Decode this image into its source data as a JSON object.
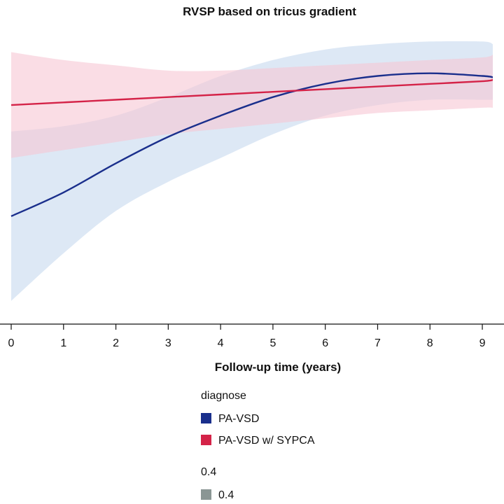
{
  "chart_data": {
    "type": "line",
    "title": "RVSP based on tricus gradient",
    "xlabel": "Follow-up time (years)",
    "ylabel": "",
    "x_ticks": [
      0,
      1,
      2,
      3,
      4,
      5,
      6,
      7,
      8,
      9
    ],
    "xlim": [
      0,
      9.2
    ],
    "y_axis_printed": false,
    "grid": false,
    "legend": {
      "placement": "bottom-left",
      "title": "diagnose",
      "entries": [
        "PA-VSD",
        "PA-VSD w/ SYPCA"
      ],
      "size_title": "0.4",
      "size_entry": "0.4",
      "size_color": "#8a9694"
    },
    "series": [
      {
        "name": "PA-VSD",
        "color": "#1a2f8c",
        "band_color": "#c7d9ee",
        "x": [
          0,
          1,
          2,
          3,
          4,
          5,
          6,
          7,
          8,
          9,
          9.2
        ],
        "y": [
          0.46,
          0.55,
          0.66,
          0.76,
          0.84,
          0.91,
          0.96,
          0.99,
          1.0,
          0.99,
          0.985
        ],
        "lower": [
          0.14,
          0.32,
          0.48,
          0.59,
          0.68,
          0.77,
          0.84,
          0.88,
          0.9,
          0.9,
          0.9
        ],
        "upper": [
          0.78,
          0.8,
          0.84,
          0.91,
          0.99,
          1.05,
          1.09,
          1.11,
          1.12,
          1.12,
          1.11
        ]
      },
      {
        "name": "PA-VSD w/ SYPCA",
        "color": "#d42348",
        "band_color": "#f7c7d3",
        "x": [
          0,
          1,
          2,
          3,
          4,
          5,
          6,
          7,
          8,
          9,
          9.2
        ],
        "y": [
          0.88,
          0.89,
          0.9,
          0.91,
          0.92,
          0.93,
          0.94,
          0.95,
          0.96,
          0.97,
          0.975
        ],
        "lower": [
          0.68,
          0.71,
          0.74,
          0.77,
          0.79,
          0.81,
          0.83,
          0.85,
          0.86,
          0.87,
          0.87
        ],
        "upper": [
          1.08,
          1.05,
          1.03,
          1.01,
          1.01,
          1.02,
          1.03,
          1.04,
          1.05,
          1.06,
          1.07
        ]
      }
    ]
  }
}
